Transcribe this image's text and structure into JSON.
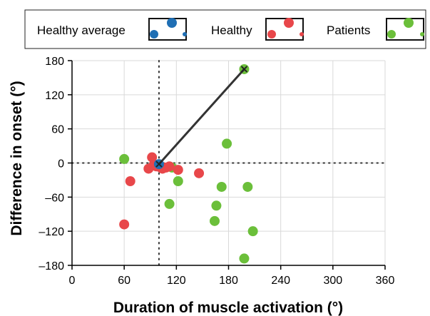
{
  "chart_data": {
    "type": "scatter",
    "title": "",
    "xlabel": "Duration of muscle activation (°)",
    "ylabel": "Difference in onset (°)",
    "xlim": [
      0,
      360
    ],
    "ylim": [
      -180,
      180
    ],
    "x_ticks": [
      "0",
      "60",
      "120",
      "180",
      "240",
      "300",
      "360"
    ],
    "y_ticks": [
      "180",
      "120",
      "60",
      "0",
      "–60",
      "–120",
      "–180"
    ],
    "grid": true,
    "legend_position": "top",
    "reference_lines": {
      "x": 100,
      "y": 0,
      "style": "dotted"
    },
    "series": [
      {
        "name": "Healthy average",
        "color": "#1f6fb4",
        "points": [
          [
            100,
            -2
          ]
        ]
      },
      {
        "name": "Healthy",
        "color": "#e8474a",
        "points": [
          [
            60,
            -108
          ],
          [
            67,
            -32
          ],
          [
            88,
            -10
          ],
          [
            92,
            10
          ],
          [
            94,
            -3
          ],
          [
            97,
            -6
          ],
          [
            102,
            -8
          ],
          [
            104,
            -10
          ],
          [
            108,
            -8
          ],
          [
            112,
            -6
          ],
          [
            122,
            -12
          ],
          [
            146,
            -18
          ]
        ]
      },
      {
        "name": "Patients",
        "color": "#6bbf3a",
        "points": [
          [
            60,
            7
          ],
          [
            198,
            165
          ],
          [
            115,
            -8
          ],
          [
            112,
            -72
          ],
          [
            122,
            -32
          ],
          [
            172,
            -42
          ],
          [
            178,
            34
          ],
          [
            202,
            -42
          ],
          [
            166,
            -75
          ],
          [
            164,
            -102
          ],
          [
            208,
            -120
          ],
          [
            198,
            -168
          ]
        ]
      }
    ],
    "annotations": [
      {
        "type": "line",
        "from": [
          100,
          -2
        ],
        "to": [
          198,
          165
        ],
        "color": "#333333"
      },
      {
        "type": "marker",
        "shape": "x",
        "at": [
          100,
          -2
        ]
      },
      {
        "type": "marker",
        "shape": "x",
        "at": [
          198,
          165
        ]
      }
    ]
  }
}
